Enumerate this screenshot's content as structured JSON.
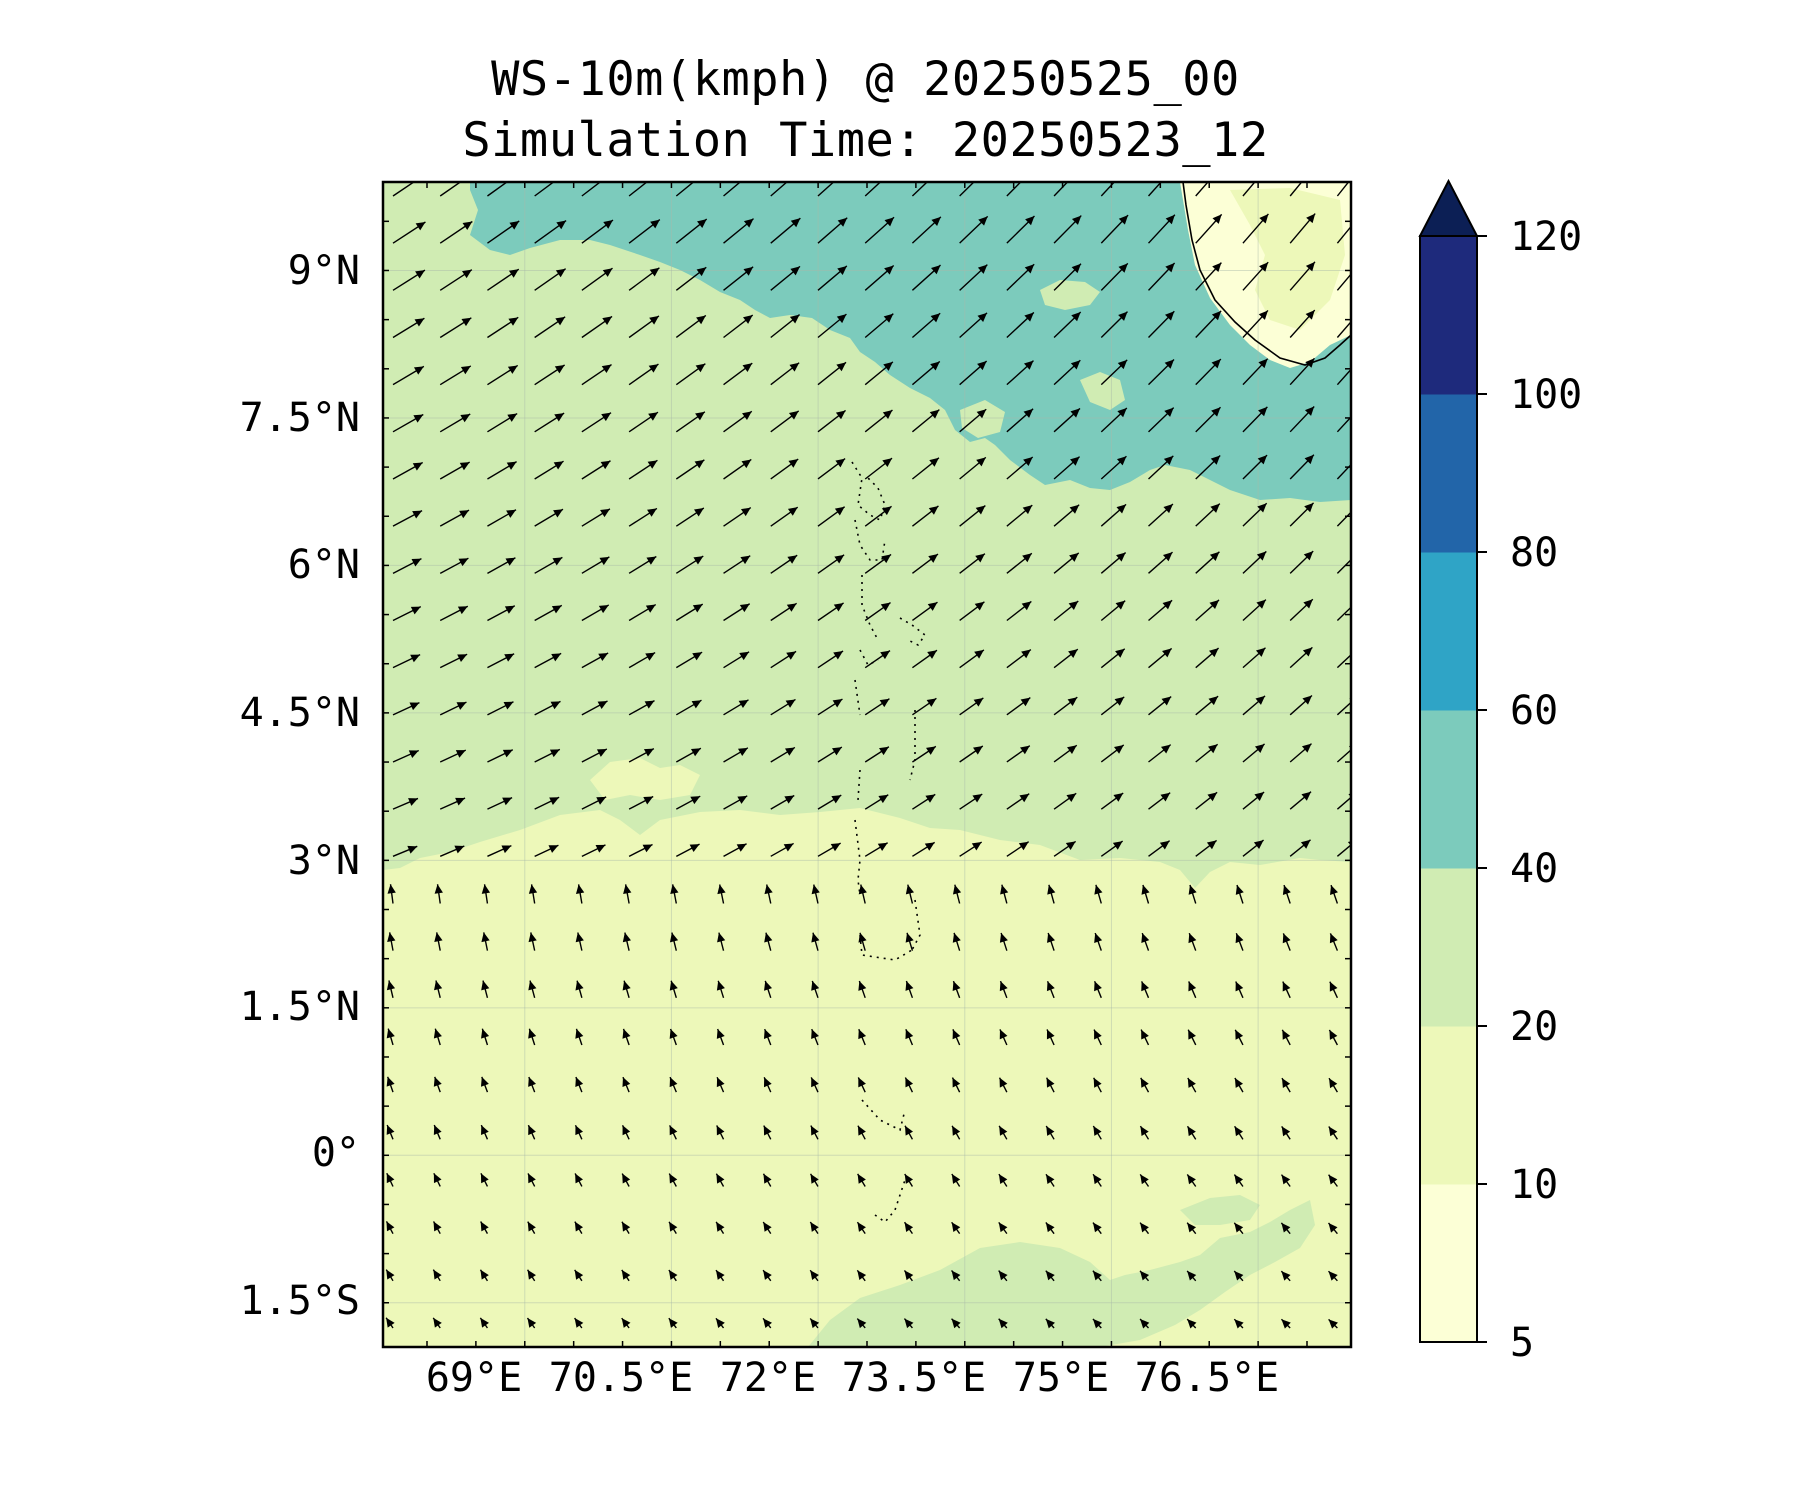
{
  "title": {
    "line1": "WS-10m(kmph) @ 20250525_00",
    "line2": "Simulation Time: 20250523_12"
  },
  "axes": {
    "lat_labels": [
      "9°N",
      "7.5°N",
      "6°N",
      "4.5°N",
      "3°N",
      "1.5°N",
      "0°",
      "1.5°S"
    ],
    "lon_labels": [
      "69°E",
      "70.5°E",
      "72°E",
      "73.5°E",
      "75°E",
      "76.5°E"
    ],
    "lat_values": [
      9,
      7.5,
      6,
      4.5,
      3,
      1.5,
      0,
      -1.5
    ],
    "lon_values": [
      69,
      70.5,
      72,
      73.5,
      75,
      76.5
    ],
    "lat_range": [
      -1.95,
      9.9
    ],
    "lon_range": [
      67.55,
      77.45
    ],
    "grid": true
  },
  "colorbar": {
    "levels": [
      5,
      10,
      20,
      40,
      60,
      80,
      100,
      120
    ],
    "labels": [
      "5",
      "10",
      "20",
      "40",
      "60",
      "80",
      "100",
      "120"
    ],
    "colors": [
      "#fcffd6",
      "#edf8b9",
      "#d0ecb3",
      "#7ccbbc",
      "#2fa4c6",
      "#2265a9",
      "#1e2a7c"
    ],
    "extend_color": "#0c1f55",
    "extend": "max"
  },
  "chart_data": {
    "type": "contourf",
    "variable": "WS-10m(kmph)",
    "valid_time": "20250525_00",
    "simulation_time": "20250523_12",
    "regions": [
      {
        "range": "40-60 kmph",
        "color": "#7ccbbc",
        "area": "north-east band (approx. 6.5°N to 9.9°N)"
      },
      {
        "range": "20-40 kmph",
        "color": "#d0ecb3",
        "area": "central band (approx. 3°N to 7°N) and patch near 1.5°S, 73°E–76.5°E"
      },
      {
        "range": "10-20 kmph",
        "color": "#edf8b9",
        "area": "southern region (approx. 1.95°S to 3°N)"
      },
      {
        "range": "5-10 kmph",
        "color": "#fcffd6",
        "area": "south-west India coast, land"
      }
    ],
    "wind_vectors": {
      "north_of_3N": "south-westerly (blowing toward north-east)",
      "south_of_3N": "south-south-easterly (blowing toward north / north-west)"
    }
  }
}
